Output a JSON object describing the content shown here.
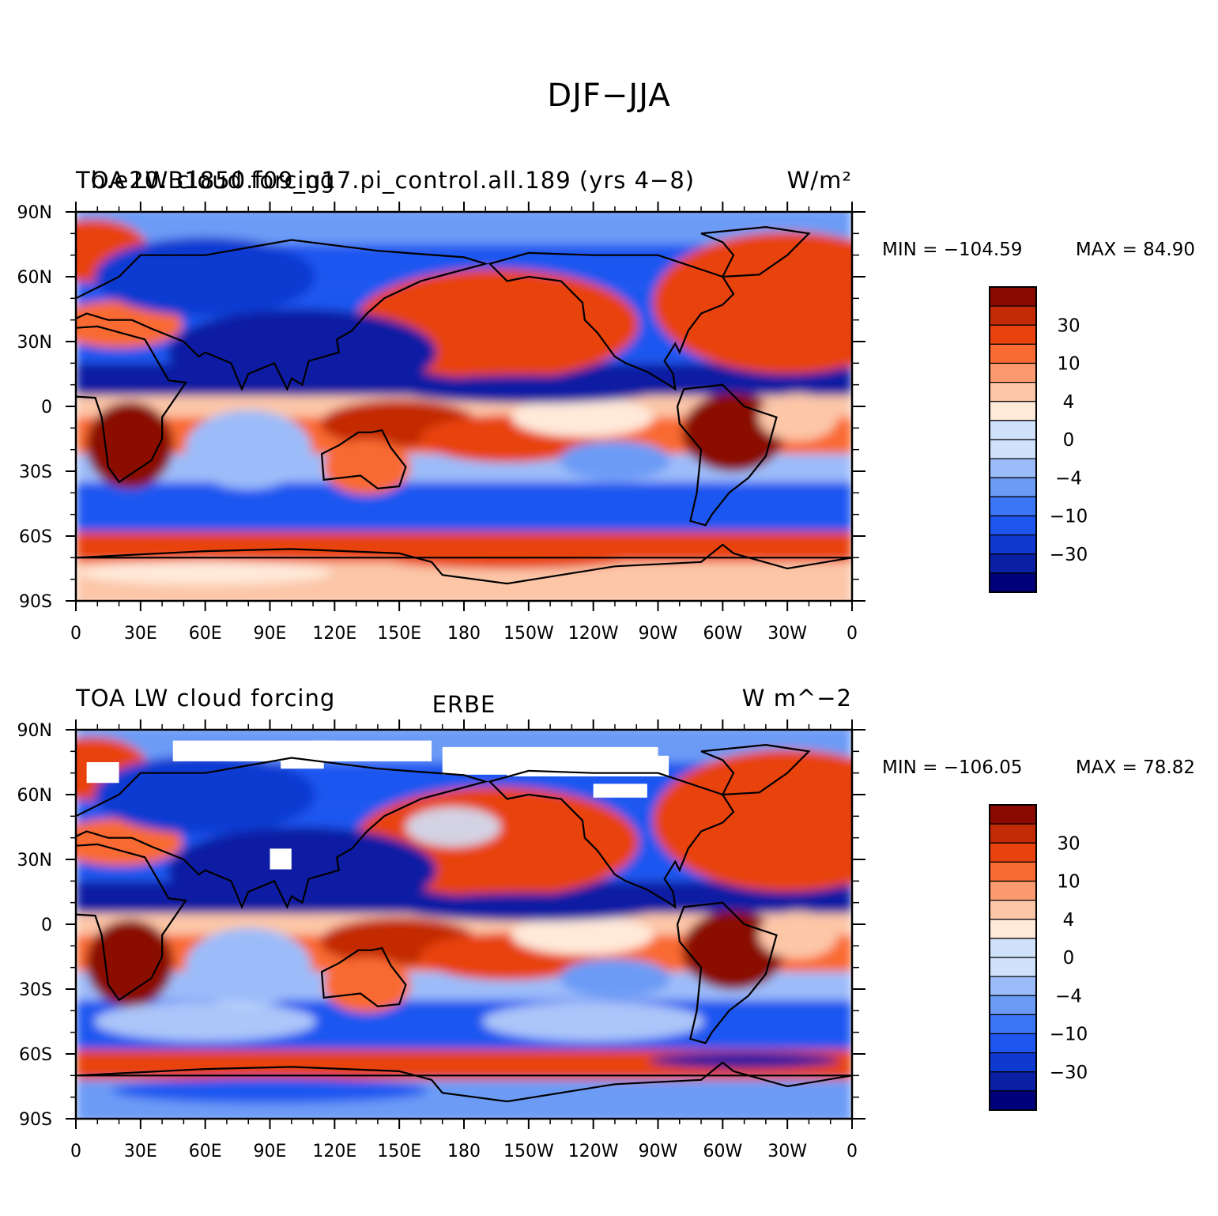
{
  "main_title": "DJF−JJA",
  "colors": {
    "levels_palette": [
      "#00007a",
      "#0a1fa3",
      "#0f3ad1",
      "#1e56f0",
      "#3b76f7",
      "#6c9bf6",
      "#9cbcf9",
      "#d0e2fb",
      "#ffe9d9",
      "#fcc6a7",
      "#fb9a6e",
      "#f96b32",
      "#e8430f",
      "#c32a06",
      "#8a0a00"
    ]
  },
  "map": {
    "lon_ticks": [
      "0",
      "30E",
      "60E",
      "90E",
      "120E",
      "150E",
      "180",
      "150W",
      "120W",
      "90W",
      "60W",
      "30W",
      "0"
    ],
    "lat_ticks": [
      "90N",
      "60N",
      "30N",
      "0",
      "30S",
      "60S",
      "90S"
    ]
  },
  "panels": [
    {
      "left_title": "TOA LW cloud forcing",
      "center_title": "b.e20.B1850.f09_g17.pi_control.all.189 (yrs 4−8)",
      "right_title": "W/m²",
      "min_label": "MIN = −104.59",
      "max_label": "MAX =   84.90",
      "colorbar_labels": [
        "30",
        "10",
        "4",
        "0",
        "−4",
        "−10",
        "−30"
      ]
    },
    {
      "left_title": "TOA LW cloud forcing",
      "center_title": "ERBE",
      "right_title": "W m^−2",
      "min_label": "MIN = −106.05",
      "max_label": "MAX =   78.82",
      "colorbar_labels": [
        "30",
        "10",
        "4",
        "0",
        "−4",
        "−10",
        "−30"
      ]
    }
  ]
}
